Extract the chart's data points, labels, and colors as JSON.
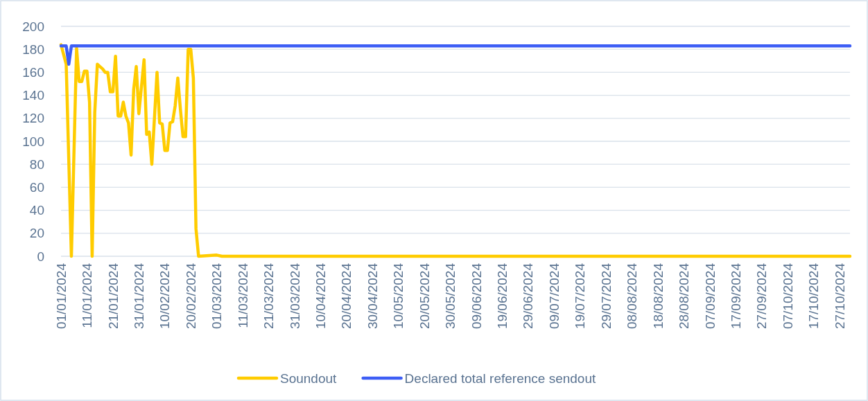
{
  "chart_data": {
    "type": "line",
    "xlim": [
      "2024-01-01",
      "2024-10-31"
    ],
    "xticks": [
      {
        "value": "2024-01-01",
        "label": "01/01/2024"
      },
      {
        "value": "2024-01-11",
        "label": "11/01/2024"
      },
      {
        "value": "2024-01-21",
        "label": "21/01/2024"
      },
      {
        "value": "2024-01-31",
        "label": "31/01/2024"
      },
      {
        "value": "2024-02-10",
        "label": "10/02/2024"
      },
      {
        "value": "2024-02-20",
        "label": "20/02/2024"
      },
      {
        "value": "2024-03-01",
        "label": "01/03/2024"
      },
      {
        "value": "2024-03-11",
        "label": "11/03/2024"
      },
      {
        "value": "2024-03-21",
        "label": "21/03/2024"
      },
      {
        "value": "2024-03-31",
        "label": "31/03/2024"
      },
      {
        "value": "2024-04-10",
        "label": "10/04/2024"
      },
      {
        "value": "2024-04-20",
        "label": "20/04/2024"
      },
      {
        "value": "2024-04-30",
        "label": "30/04/2024"
      },
      {
        "value": "2024-05-10",
        "label": "10/05/2024"
      },
      {
        "value": "2024-05-20",
        "label": "20/05/2024"
      },
      {
        "value": "2024-05-30",
        "label": "30/05/2024"
      },
      {
        "value": "2024-06-09",
        "label": "09/06/2024"
      },
      {
        "value": "2024-06-19",
        "label": "19/06/2024"
      },
      {
        "value": "2024-06-29",
        "label": "29/06/2024"
      },
      {
        "value": "2024-07-09",
        "label": "09/07/2024"
      },
      {
        "value": "2024-07-19",
        "label": "19/07/2024"
      },
      {
        "value": "2024-07-29",
        "label": "29/07/2024"
      },
      {
        "value": "2024-08-08",
        "label": "08/08/2024"
      },
      {
        "value": "2024-08-18",
        "label": "18/08/2024"
      },
      {
        "value": "2024-08-28",
        "label": "28/08/2024"
      },
      {
        "value": "2024-09-07",
        "label": "07/09/2024"
      },
      {
        "value": "2024-09-17",
        "label": "17/09/2024"
      },
      {
        "value": "2024-09-27",
        "label": "27/09/2024"
      },
      {
        "value": "2024-10-07",
        "label": "07/10/2024"
      },
      {
        "value": "2024-10-17",
        "label": "17/10/2024"
      },
      {
        "value": "2024-10-27",
        "label": "27/10/2024"
      }
    ],
    "ylim": [
      0,
      200
    ],
    "yticks": [
      0,
      20,
      40,
      60,
      80,
      100,
      120,
      140,
      160,
      180,
      200
    ],
    "grid": "y",
    "legend": "bottom",
    "series": [
      {
        "name": "Soundout",
        "color": "#ffcc00",
        "x": [
          "2024-01-01",
          "2024-01-03",
          "2024-01-05",
          "2024-01-07",
          "2024-01-08",
          "2024-01-09",
          "2024-01-10",
          "2024-01-11",
          "2024-01-12",
          "2024-01-13",
          "2024-01-14",
          "2024-01-15",
          "2024-01-16",
          "2024-01-17",
          "2024-01-18",
          "2024-01-19",
          "2024-01-20",
          "2024-01-21",
          "2024-01-22",
          "2024-01-23",
          "2024-01-24",
          "2024-01-25",
          "2024-01-26",
          "2024-01-27",
          "2024-01-28",
          "2024-01-29",
          "2024-01-30",
          "2024-01-31",
          "2024-02-02",
          "2024-02-03",
          "2024-02-04",
          "2024-02-05",
          "2024-02-07",
          "2024-02-08",
          "2024-02-09",
          "2024-02-10",
          "2024-02-11",
          "2024-02-12",
          "2024-02-13",
          "2024-02-14",
          "2024-02-15",
          "2024-02-16",
          "2024-02-17",
          "2024-02-18",
          "2024-02-19",
          "2024-02-20",
          "2024-02-21",
          "2024-02-22",
          "2024-02-23",
          "2024-03-01",
          "2024-03-03",
          "2024-10-31"
        ],
        "values": [
          184,
          167,
          0,
          181,
          152,
          152,
          161,
          161,
          134,
          0,
          125,
          167,
          165,
          163,
          160,
          160,
          143,
          143,
          174,
          122,
          122,
          134,
          122,
          116,
          88,
          145,
          165,
          124,
          171,
          106,
          108,
          80,
          160,
          116,
          115,
          92,
          92,
          116,
          117,
          131,
          155,
          128,
          104,
          104,
          180,
          180,
          155,
          24,
          0,
          1,
          0,
          0
        ]
      },
      {
        "name": "Declared total reference sendout",
        "color": "#3d5ef5",
        "x": [
          "2024-01-01",
          "2024-01-03",
          "2024-01-04",
          "2024-01-05",
          "2024-10-31"
        ],
        "values": [
          183,
          183,
          167,
          183,
          183
        ]
      }
    ]
  }
}
